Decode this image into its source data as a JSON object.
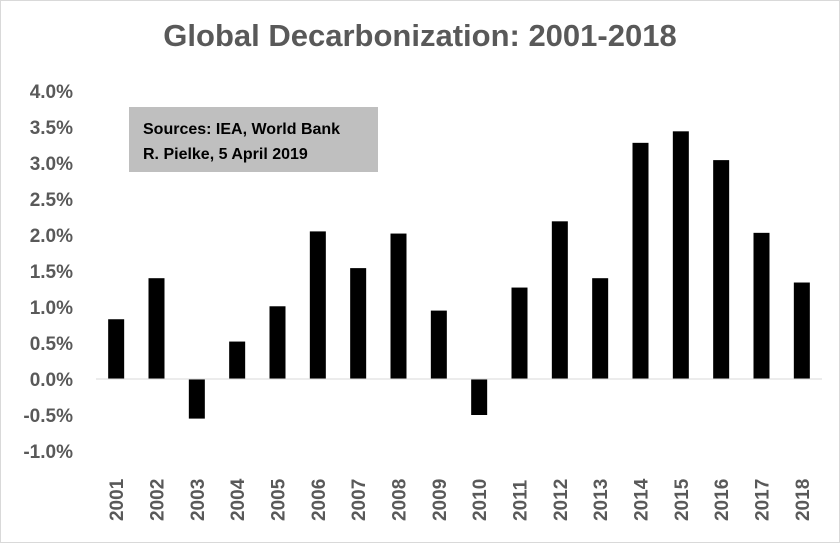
{
  "chart_data": {
    "type": "bar",
    "title": "Global Decarbonization: 2001-2018",
    "xlabel": "",
    "ylabel": "",
    "categories": [
      "2001",
      "2002",
      "2003",
      "2004",
      "2005",
      "2006",
      "2007",
      "2008",
      "2009",
      "2010",
      "2011",
      "2012",
      "2013",
      "2014",
      "2015",
      "2016",
      "2017",
      "2018"
    ],
    "values": [
      0.83,
      1.4,
      -0.55,
      0.52,
      1.01,
      2.05,
      1.54,
      2.02,
      0.95,
      -0.5,
      1.27,
      2.19,
      1.4,
      3.28,
      3.44,
      3.04,
      2.03,
      1.34
    ],
    "ylim": [
      -1.0,
      4.0
    ],
    "yticks": [
      "-1.0%",
      "-0.5%",
      "0.0%",
      "0.5%",
      "1.0%",
      "1.5%",
      "2.0%",
      "2.5%",
      "3.0%",
      "3.5%",
      "4.0%"
    ],
    "grid": false,
    "legend": "none",
    "bar_color": "#000000",
    "annotations": [
      "Sources: IEA, World Bank",
      "R. Pielke, 5 April 2019"
    ]
  }
}
